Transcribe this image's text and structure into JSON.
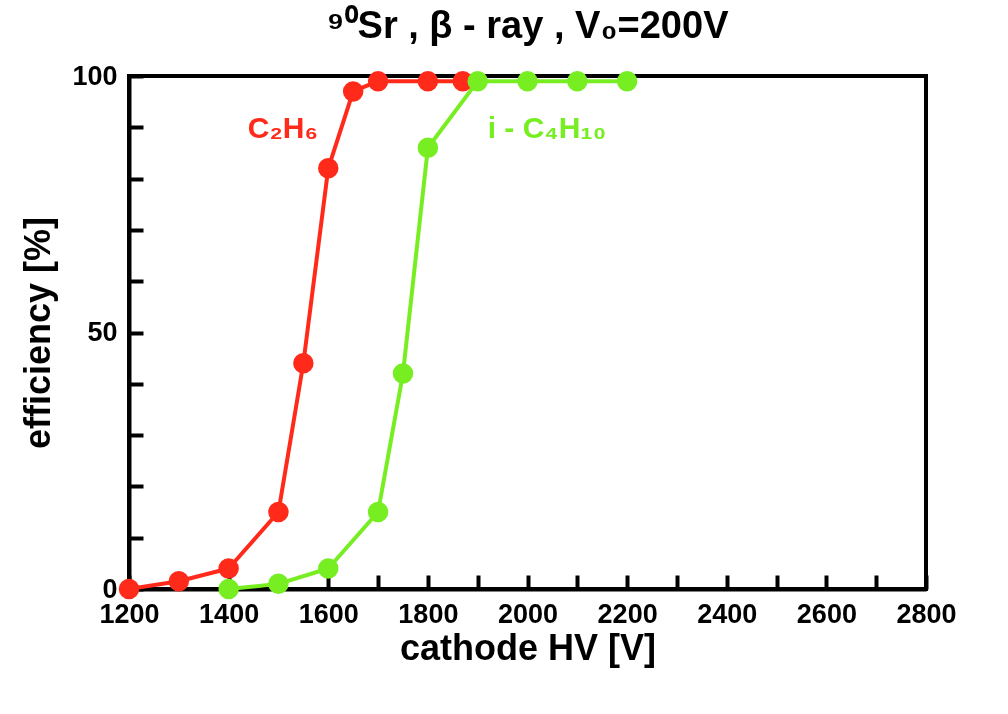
{
  "chart_data": {
    "type": "line",
    "title": "⁹⁰Sr  ,  β - ray  ,  V₀=200V",
    "xlabel": "cathode  HV [V]",
    "ylabel": "efficiency [%]",
    "xlim": [
      1200,
      2800
    ],
    "ylim": [
      0,
      100
    ],
    "xticks": [
      1200,
      {
        "value": 1300,
        "label": null
      },
      1400,
      {
        "value": 1500,
        "label": null
      },
      1600,
      {
        "value": 1700,
        "label": null
      },
      1800,
      {
        "value": 1900,
        "label": null
      },
      2000,
      {
        "value": 2100,
        "label": null
      },
      2200,
      {
        "value": 2300,
        "label": null
      },
      2400,
      {
        "value": 2500,
        "label": null
      },
      2600,
      {
        "value": 2700,
        "label": null
      },
      2800
    ],
    "yticks": [
      0,
      {
        "value": 10,
        "label": null
      },
      {
        "value": 20,
        "label": null
      },
      {
        "value": 30,
        "label": null
      },
      {
        "value": 40,
        "label": null
      },
      50,
      {
        "value": 60,
        "label": null
      },
      {
        "value": 70,
        "label": null
      },
      {
        "value": 80,
        "label": null
      },
      {
        "value": 90,
        "label": null
      },
      100
    ],
    "marker": "circle",
    "line_style": "solid",
    "grid": false,
    "legend": false,
    "series": [
      {
        "name": "C₂H₆",
        "color": "#ff2a1a",
        "x": [
          1200,
          1300,
          1400,
          1500,
          1550,
          1600,
          1650,
          1700,
          1800,
          1870
        ],
        "values": [
          0,
          1.5,
          4,
          15,
          44,
          82,
          97,
          99,
          99,
          99
        ]
      },
      {
        "name": "i - C₄H₁₀",
        "color": "#77ee22",
        "x": [
          1400,
          1500,
          1600,
          1700,
          1750,
          1800,
          1900,
          2000,
          2100,
          2200
        ],
        "values": [
          0,
          1,
          4,
          15,
          42,
          86,
          99,
          99,
          99,
          99
        ]
      }
    ]
  }
}
